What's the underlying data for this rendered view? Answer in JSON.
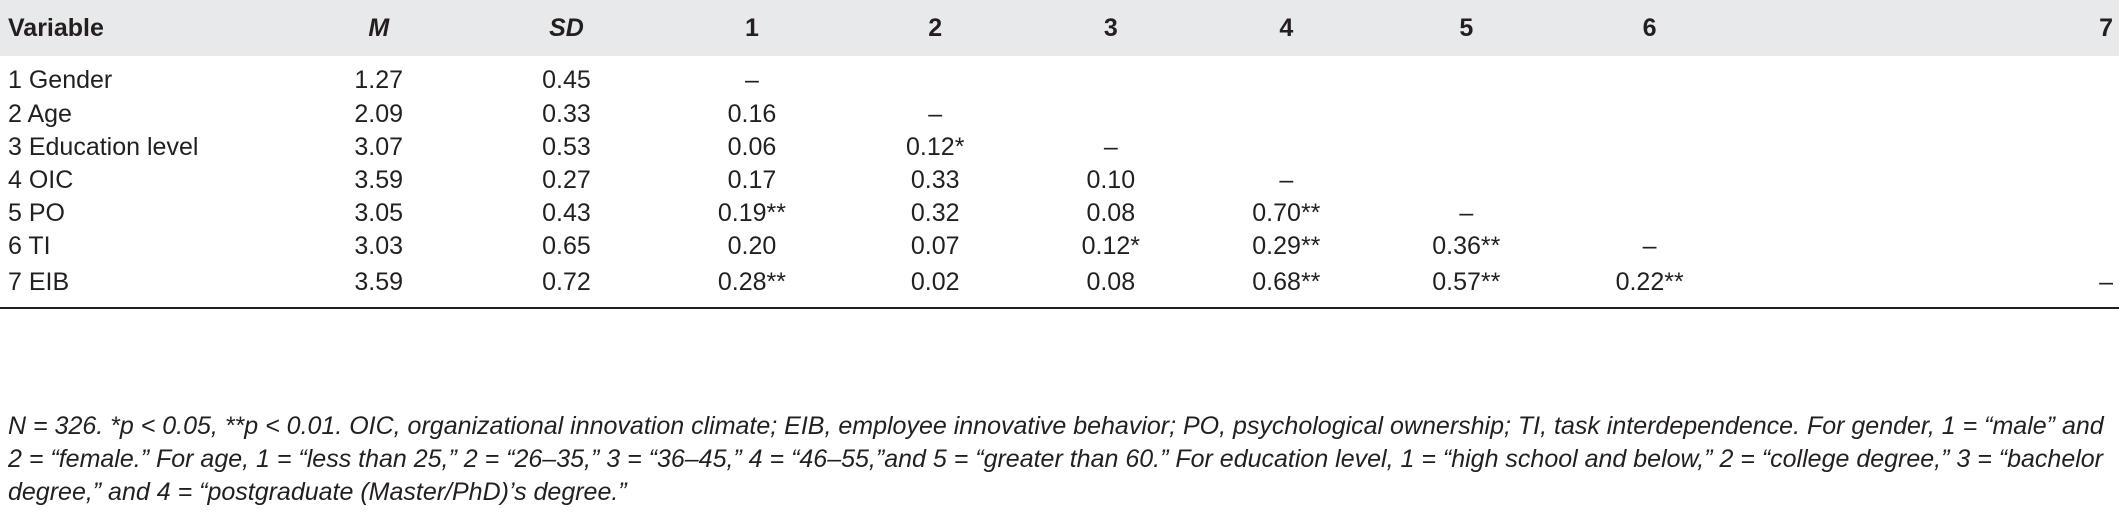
{
  "table": {
    "headers": [
      "Variable",
      "M",
      "SD",
      "1",
      "2",
      "3",
      "4",
      "5",
      "6",
      "7"
    ],
    "rows": [
      [
        "1 Gender",
        "1.27",
        "0.45",
        "–",
        "",
        "",
        "",
        "",
        "",
        ""
      ],
      [
        "2 Age",
        "2.09",
        "0.33",
        "0.16",
        "–",
        "",
        "",
        "",
        "",
        ""
      ],
      [
        "3 Education level",
        "3.07",
        "0.53",
        "0.06",
        "0.12*",
        "–",
        "",
        "",
        "",
        ""
      ],
      [
        "4 OIC",
        "3.59",
        "0.27",
        "0.17",
        "0.33",
        "0.10",
        "–",
        "",
        "",
        ""
      ],
      [
        "5 PO",
        "3.05",
        "0.43",
        "0.19**",
        "0.32",
        "0.08",
        "0.70**",
        "–",
        "",
        ""
      ],
      [
        "6 TI",
        "3.03",
        "0.65",
        "0.20",
        "0.07",
        "0.12*",
        "0.29**",
        "0.36**",
        "–",
        ""
      ],
      [
        "7 EIB",
        "3.59",
        "0.72",
        "0.28**",
        "0.02",
        "0.08",
        "0.68**",
        "0.57**",
        "0.22**",
        "–"
      ]
    ]
  },
  "note": "N = 326. *p < 0.05, **p < 0.01. OIC, organizational innovation climate; EIB, employee innovative behavior; PO, psychological ownership; TI, task interdependence. For gender, 1 = “male” and 2 = “female.” For age, 1 = “less than 25,” 2 = “26–35,” 3 = “36–45,” 4 = “46–55,”and 5 = “greater than 60.” For education level, 1 = “high school and below,” 2 = “college degree,” 3 = “bachelor degree,” and 4 = “postgraduate (Master/PhD)’s degree.”"
}
